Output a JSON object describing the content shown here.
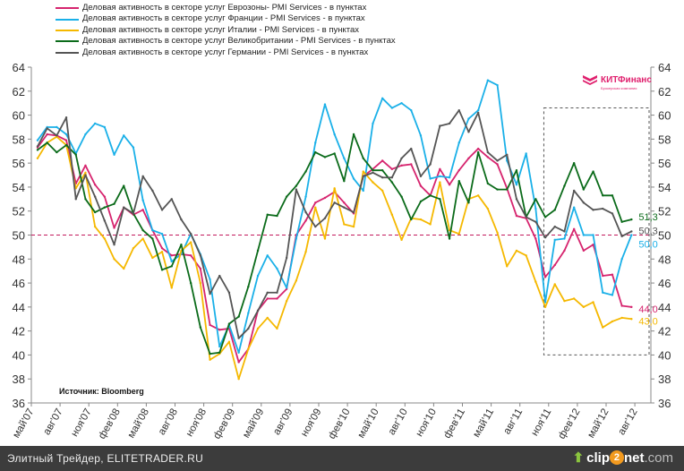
{
  "chart_data": {
    "type": "line",
    "title": "",
    "xlabel": "",
    "ylabel": "",
    "ylim": [
      36,
      64
    ],
    "yticks": [
      "36",
      "38",
      "40",
      "42",
      "44",
      "46",
      "48",
      "50",
      "52",
      "54",
      "56",
      "58",
      "60",
      "62",
      "64"
    ],
    "x_tick_labels": [
      "май'07",
      "авг'07",
      "ноя'07",
      "фев'08",
      "май'08",
      "авг'08",
      "ноя'08",
      "фев'09",
      "май'09",
      "авг'09",
      "ноя'09",
      "фев'10",
      "май'10",
      "авг'10",
      "ноя'10",
      "фев'11",
      "май'11",
      "авг'11",
      "ноя'11",
      "фев'12",
      "май'12",
      "авг'12"
    ],
    "x_start": "май'07",
    "x_unit": "month",
    "reference_line": 50,
    "highlight_box": {
      "from_label": "ноя'11",
      "y_range": [
        40,
        60.6
      ]
    },
    "source_note": "Источник: Bloomberg",
    "legend_position": "top-left",
    "series": [
      {
        "name": "Деловая активность в секторе услуг Еврозоны- PMI Services - в пунктах",
        "color": "#d6246e",
        "end_label": "44,0",
        "values": [
          57.3,
          58.4,
          58.3,
          57.9,
          54.3,
          55.8,
          54.2,
          53.2,
          50.6,
          52.3,
          51.7,
          52.1,
          50.4,
          48.9,
          48.3,
          48.4,
          48.3,
          47.2,
          42.5,
          42.1,
          42.2,
          39.4,
          40.5,
          43.7,
          44.7,
          44.7,
          45.5,
          50.0,
          51.2,
          52.7,
          53.1,
          53.6,
          52.7,
          51.8,
          54.9,
          55.5,
          56.2,
          55.5,
          55.8,
          55.9,
          54.1,
          53.3,
          55.5,
          54.2,
          55.4,
          56.4,
          57.2,
          56.5,
          55.9,
          53.9,
          51.6,
          51.4,
          49.7,
          46.5,
          47.5,
          48.7,
          50.5,
          48.7,
          49.2,
          46.6,
          46.7,
          44.1,
          44.0
        ]
      },
      {
        "name": "Деловая активность в секторе услуг Франции - PMI Services - в пунктах",
        "color": "#1ab0e8",
        "end_label": "50,0",
        "values": [
          57.9,
          59.0,
          59.0,
          58.4,
          56.8,
          58.4,
          59.3,
          59.0,
          56.7,
          58.3,
          57.3,
          52.9,
          50.4,
          50.1,
          47.8,
          48.4,
          50.1,
          48.4,
          46.3,
          40.7,
          42.5,
          40.2,
          43.5,
          46.6,
          48.3,
          47.2,
          45.6,
          49.7,
          53.2,
          57.7,
          60.9,
          58.4,
          56.4,
          54.7,
          53.7,
          59.3,
          61.4,
          60.6,
          61.0,
          60.4,
          58.3,
          54.7,
          54.9,
          54.8,
          57.7,
          59.7,
          60.4,
          62.9,
          62.5,
          56.2,
          54.2,
          56.8,
          52.2,
          44.4,
          49.6,
          49.7,
          52.3,
          50.0,
          50.0,
          45.2,
          45.0,
          48.0,
          50.0
        ]
      },
      {
        "name": "Деловая активность в секторе услуг Италии - PMI Services - в пунктах",
        "color": "#f5b800",
        "end_label": "43,0",
        "values": [
          56.4,
          57.7,
          58.2,
          57.5,
          53.9,
          55.2,
          50.7,
          49.7,
          48.0,
          47.2,
          48.9,
          49.7,
          48.1,
          48.6,
          45.6,
          48.7,
          49.4,
          46.0,
          39.6,
          40.1,
          41.1,
          38.0,
          40.5,
          42.2,
          43.1,
          42.2,
          44.5,
          46.2,
          48.6,
          52.3,
          49.7,
          53.9,
          50.9,
          50.7,
          55.3,
          54.4,
          53.7,
          51.7,
          49.6,
          51.4,
          51.3,
          50.9,
          54.4,
          50.4,
          50.1,
          53.0,
          53.3,
          52.2,
          50.2,
          47.4,
          48.7,
          48.3,
          46.1,
          44.0,
          45.9,
          44.5,
          44.7,
          44.0,
          44.4,
          42.3,
          42.8,
          43.1,
          43.0
        ]
      },
      {
        "name": "Деловая активность в секторе услуг Великобритании - PMI Services - в пунктах",
        "color": "#0b6b1a",
        "end_label": "51,3",
        "values": [
          57.1,
          57.7,
          56.9,
          57.5,
          56.7,
          53.0,
          51.9,
          52.3,
          52.6,
          54.1,
          51.8,
          50.4,
          49.7,
          47.1,
          47.4,
          49.2,
          46.0,
          42.3,
          40.1,
          40.2,
          42.6,
          43.2,
          45.7,
          48.7,
          51.7,
          51.6,
          53.2,
          54.1,
          55.3,
          56.9,
          56.5,
          56.8,
          54.5,
          58.4,
          56.4,
          55.4,
          55.4,
          54.4,
          53.2,
          51.3,
          52.8,
          53.3,
          53.0,
          49.7,
          54.5,
          52.7,
          56.9,
          54.3,
          53.8,
          53.8,
          55.4,
          51.5,
          53.0,
          51.5,
          52.1,
          54.1,
          56.0,
          53.8,
          55.3,
          53.3,
          53.3,
          51.1,
          51.3
        ]
      },
      {
        "name": "Деловая активность в секторе услуг Германии - PMI Services - в пунктах",
        "color": "#555555",
        "end_label": "50,3",
        "values": [
          57.4,
          58.9,
          58.3,
          59.8,
          53.0,
          55.0,
          53.2,
          51.2,
          49.2,
          52.3,
          51.8,
          54.9,
          53.7,
          52.1,
          53.0,
          51.3,
          50.1,
          48.3,
          45.1,
          46.6,
          45.2,
          41.4,
          42.2,
          43.7,
          45.2,
          45.2,
          48.1,
          53.8,
          51.9,
          50.7,
          51.4,
          52.7,
          52.3,
          51.9,
          54.9,
          55.2,
          54.8,
          54.8,
          56.4,
          57.2,
          54.9,
          55.9,
          59.1,
          59.3,
          60.4,
          58.6,
          60.2,
          56.9,
          56.2,
          56.7,
          53.0,
          51.5,
          51.1,
          49.8,
          50.7,
          50.3,
          53.7,
          52.7,
          52.1,
          52.2,
          51.8,
          49.9,
          50.3
        ]
      }
    ]
  },
  "logo": {
    "name": "КИТФинанс",
    "subtitle": "Брокерская компания"
  },
  "footer": {
    "text": "Элитный Трейдер, ELITETRADER.RU",
    "clip_a": "clip",
    "clip_2": "2",
    "clip_b": "net",
    "clip_com": ".com"
  }
}
